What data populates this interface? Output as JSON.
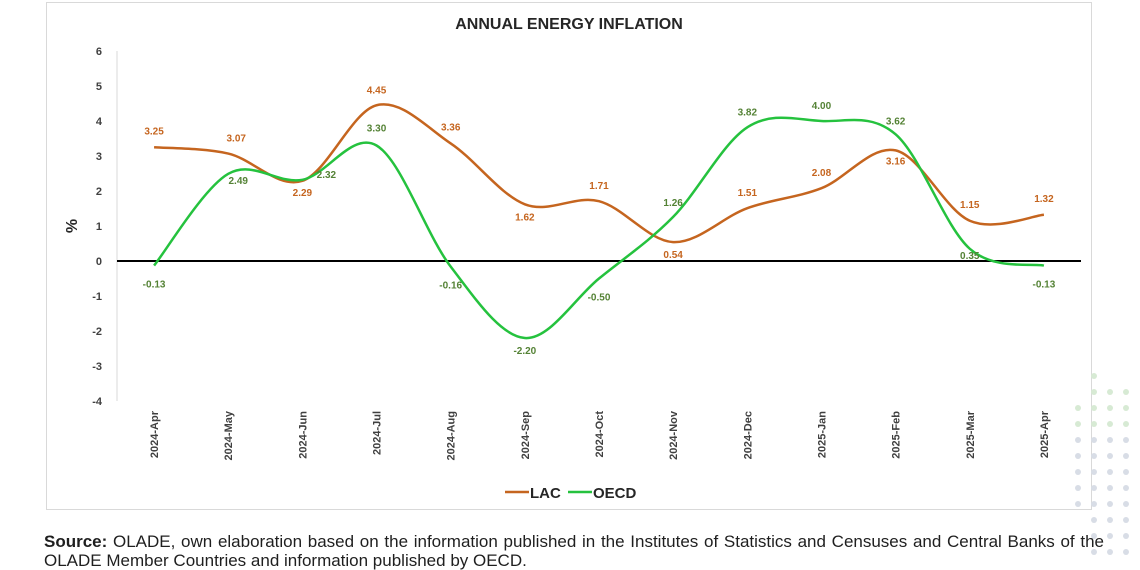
{
  "chart_data": {
    "type": "line",
    "title": "ANNUAL ENERGY INFLATION",
    "ylabel": "%",
    "xlabel": "",
    "ylim": [
      -4,
      6
    ],
    "yticks": [
      "6",
      "5",
      "4",
      "3",
      "2",
      "1",
      "0",
      "-1",
      "-2",
      "-3",
      "-4"
    ],
    "categories": [
      "2024-Apr",
      "2024-May",
      "2024-Jun",
      "2024-Jul",
      "2024-Aug",
      "2024-Sep",
      "2024-Oct",
      "2024-Nov",
      "2024-Dec",
      "2025-Jan",
      "2025-Feb",
      "2025-Mar",
      "2025-Apr"
    ],
    "series": [
      {
        "name": "LAC",
        "color": "#c5651f",
        "values": [
          3.25,
          3.07,
          2.29,
          4.45,
          3.36,
          1.62,
          1.71,
          0.54,
          1.51,
          2.08,
          3.16,
          1.15,
          1.32
        ],
        "labels": [
          "3.25",
          "3.07",
          "2.29",
          "4.45",
          "3.36",
          "1.62",
          "1.71",
          "0.54",
          "1.51",
          "2.08",
          "3.16",
          "1.15",
          "1.32"
        ]
      },
      {
        "name": "OECD",
        "color": "#25c23e",
        "label_color": "#548235",
        "values": [
          -0.13,
          2.49,
          2.32,
          3.3,
          -0.16,
          -2.2,
          -0.5,
          1.26,
          3.82,
          4.0,
          3.62,
          0.35,
          -0.13
        ],
        "labels": [
          "-0.13",
          "2.49",
          "2.32",
          "3.30",
          "-0.16",
          "-2.20",
          "-0.50",
          "1.26",
          "3.82",
          "4.00",
          "3.62",
          "0.35",
          "-0.13"
        ]
      }
    ],
    "legend_position": "bottom",
    "grid": false
  },
  "source": {
    "label": "Source:",
    "text": " OLADE, own elaboration based on the information published in the Institutes of Statistics and Censuses and Central Banks of the OLADE Member Countries and information published by OECD."
  }
}
